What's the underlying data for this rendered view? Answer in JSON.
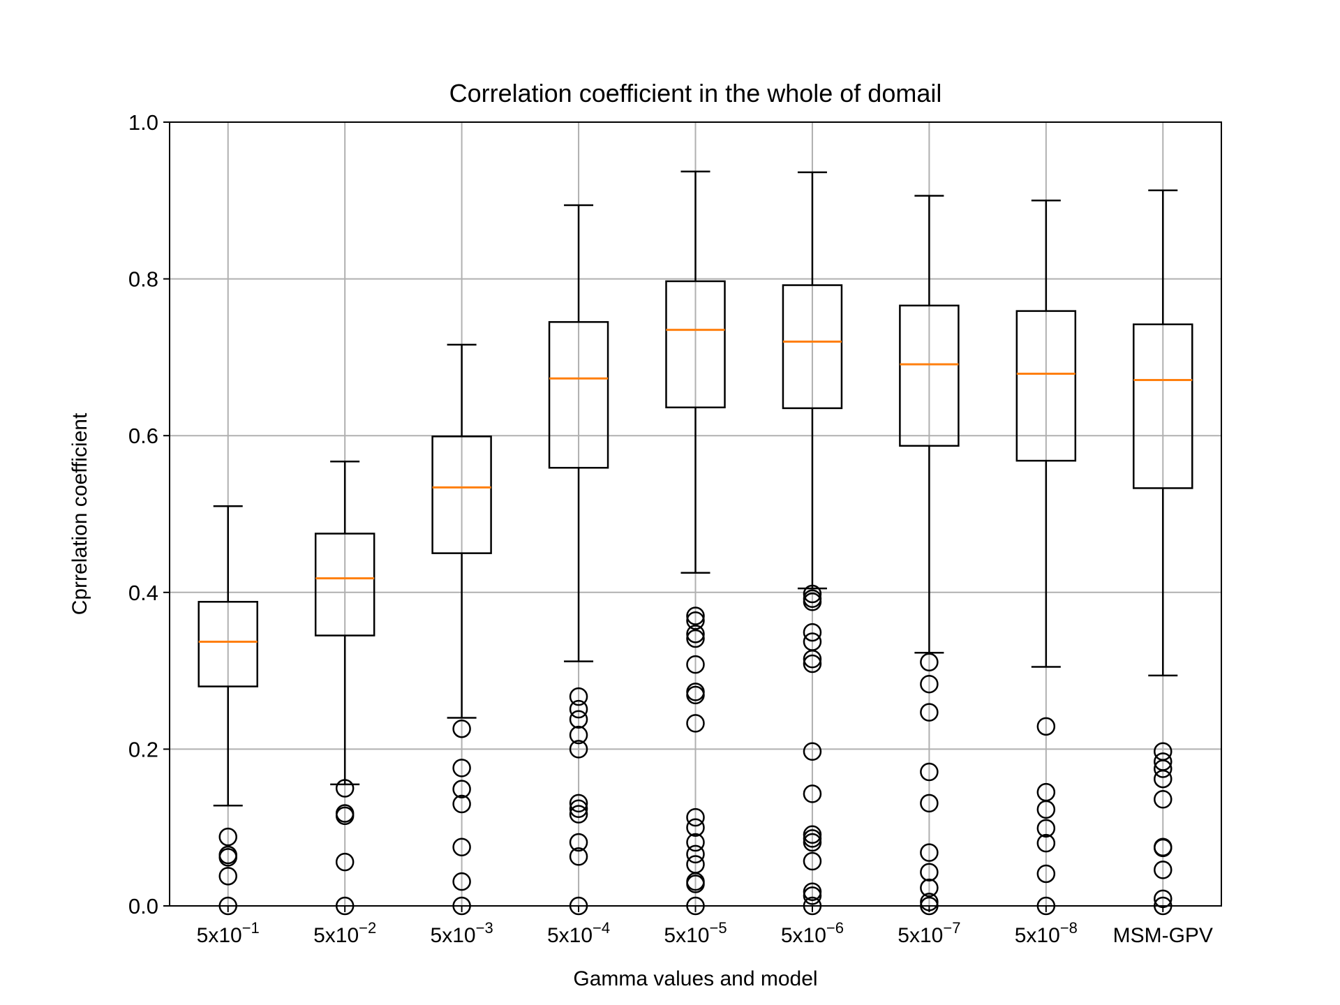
{
  "chart_data": {
    "type": "box",
    "title": "Correlation coefficient in the whole of domail",
    "xlabel": "Gamma values and model",
    "ylabel": "Cprrelation coefficient",
    "ylim": [
      0.0,
      1.0
    ],
    "yticks": [
      "0.0",
      "0.2",
      "0.4",
      "0.6",
      "0.8",
      "1.0"
    ],
    "grid": true,
    "categories": [
      {
        "base": "5x10",
        "exp": "−1"
      },
      {
        "base": "5x10",
        "exp": "−2"
      },
      {
        "base": "5x10",
        "exp": "−3"
      },
      {
        "base": "5x10",
        "exp": "−4"
      },
      {
        "base": "5x10",
        "exp": "−5"
      },
      {
        "base": "5x10",
        "exp": "−6"
      },
      {
        "base": "5x10",
        "exp": "−7"
      },
      {
        "base": "5x10",
        "exp": "−8"
      },
      {
        "base": "MSM-GPV",
        "exp": ""
      }
    ],
    "boxes": [
      {
        "whislo": 0.128,
        "q1": 0.28,
        "med": 0.337,
        "q3": 0.388,
        "whishi": 0.51,
        "fliers": [
          0.088,
          0.065,
          0.062,
          0.038,
          0.0
        ]
      },
      {
        "whislo": 0.155,
        "q1": 0.345,
        "med": 0.418,
        "q3": 0.475,
        "whishi": 0.567,
        "fliers": [
          0.15,
          0.118,
          0.115,
          0.056,
          0.0
        ]
      },
      {
        "whislo": 0.24,
        "q1": 0.45,
        "med": 0.534,
        "q3": 0.599,
        "whishi": 0.716,
        "fliers": [
          0.226,
          0.176,
          0.149,
          0.13,
          0.075,
          0.031,
          0.0
        ]
      },
      {
        "whislo": 0.312,
        "q1": 0.559,
        "med": 0.673,
        "q3": 0.745,
        "whishi": 0.894,
        "fliers": [
          0.267,
          0.251,
          0.238,
          0.218,
          0.2,
          0.131,
          0.124,
          0.117,
          0.081,
          0.063,
          0.0
        ]
      },
      {
        "whislo": 0.425,
        "q1": 0.636,
        "med": 0.735,
        "q3": 0.797,
        "whishi": 0.937,
        "fliers": [
          0.37,
          0.364,
          0.347,
          0.341,
          0.308,
          0.273,
          0.269,
          0.233,
          0.113,
          0.1,
          0.081,
          0.066,
          0.053,
          0.031,
          0.028,
          0.0
        ]
      },
      {
        "whislo": 0.405,
        "q1": 0.635,
        "med": 0.72,
        "q3": 0.792,
        "whishi": 0.936,
        "fliers": [
          0.398,
          0.392,
          0.388,
          0.349,
          0.337,
          0.315,
          0.309,
          0.197,
          0.143,
          0.091,
          0.086,
          0.081,
          0.057,
          0.018,
          0.013,
          0.0
        ]
      },
      {
        "whislo": 0.323,
        "q1": 0.587,
        "med": 0.691,
        "q3": 0.766,
        "whishi": 0.906,
        "fliers": [
          0.311,
          0.283,
          0.247,
          0.171,
          0.131,
          0.068,
          0.043,
          0.023,
          0.005,
          0.0
        ]
      },
      {
        "whislo": 0.305,
        "q1": 0.568,
        "med": 0.679,
        "q3": 0.759,
        "whishi": 0.9,
        "fliers": [
          0.229,
          0.145,
          0.123,
          0.099,
          0.08,
          0.041,
          0.0
        ]
      },
      {
        "whislo": 0.294,
        "q1": 0.533,
        "med": 0.671,
        "q3": 0.742,
        "whishi": 0.913,
        "fliers": [
          0.197,
          0.184,
          0.175,
          0.162,
          0.136,
          0.075,
          0.074,
          0.046,
          0.009,
          0.0
        ]
      }
    ],
    "colors": {
      "box": "#000000",
      "median": "#ff7f0e",
      "grid": "#b0b0b0"
    }
  }
}
